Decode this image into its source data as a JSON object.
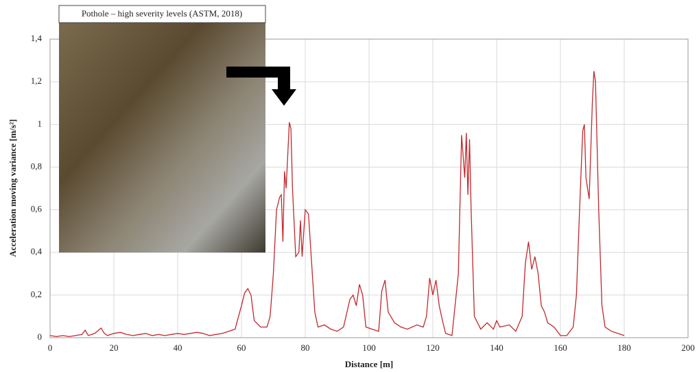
{
  "chart_data": {
    "type": "line",
    "annotation": "Pothole – high severity levels (ASTM, 2018)",
    "xlabel": "Distance [m]",
    "ylabel": "Acceleration moving variance [m/s²]",
    "x": [
      0,
      2,
      4,
      6,
      8,
      10,
      11,
      12,
      14,
      16,
      17,
      18,
      20,
      22,
      24,
      26,
      28,
      30,
      32,
      34,
      36,
      38,
      40,
      42,
      44,
      46,
      48,
      50,
      52,
      54,
      56,
      58,
      60,
      61,
      62,
      63,
      64,
      66,
      68,
      69,
      70,
      71,
      72,
      72.5,
      73,
      73.5,
      74,
      75,
      75.5,
      76,
      77,
      78,
      78.5,
      79,
      80,
      81,
      82,
      83,
      84,
      86,
      88,
      90,
      92,
      94,
      95,
      96,
      97,
      98,
      99,
      101,
      103,
      104,
      105,
      106,
      108,
      110,
      112,
      115,
      117,
      118,
      119,
      120,
      121,
      122,
      123,
      124,
      126,
      128,
      129,
      130,
      130.5,
      131,
      131.5,
      132,
      133,
      135,
      137,
      139,
      140,
      141,
      144,
      146,
      148,
      149,
      150,
      151,
      152,
      153,
      154,
      155,
      156,
      158,
      160,
      162,
      164,
      165,
      166,
      167,
      167.5,
      168,
      169,
      170,
      170.5,
      171,
      172,
      173,
      174,
      176,
      178,
      180
    ],
    "values": [
      0.01,
      0.005,
      0.01,
      0.005,
      0.01,
      0.015,
      0.035,
      0.01,
      0.02,
      0.045,
      0.02,
      0.01,
      0.02,
      0.025,
      0.015,
      0.01,
      0.015,
      0.02,
      0.01,
      0.015,
      0.01,
      0.015,
      0.02,
      0.015,
      0.02,
      0.025,
      0.02,
      0.01,
      0.015,
      0.02,
      0.03,
      0.04,
      0.15,
      0.21,
      0.23,
      0.2,
      0.08,
      0.05,
      0.05,
      0.1,
      0.3,
      0.6,
      0.66,
      0.67,
      0.45,
      0.78,
      0.7,
      1.01,
      0.98,
      0.7,
      0.38,
      0.4,
      0.55,
      0.38,
      0.6,
      0.58,
      0.35,
      0.12,
      0.05,
      0.06,
      0.04,
      0.03,
      0.05,
      0.18,
      0.2,
      0.15,
      0.25,
      0.2,
      0.05,
      0.04,
      0.03,
      0.22,
      0.27,
      0.12,
      0.07,
      0.05,
      0.04,
      0.06,
      0.05,
      0.1,
      0.28,
      0.2,
      0.27,
      0.15,
      0.08,
      0.02,
      0.01,
      0.3,
      0.95,
      0.75,
      0.96,
      0.67,
      0.93,
      0.6,
      0.1,
      0.04,
      0.07,
      0.04,
      0.08,
      0.05,
      0.06,
      0.03,
      0.1,
      0.35,
      0.45,
      0.32,
      0.38,
      0.3,
      0.15,
      0.12,
      0.07,
      0.05,
      0.01,
      0.01,
      0.05,
      0.2,
      0.6,
      0.97,
      1.0,
      0.75,
      0.65,
      1.1,
      1.25,
      1.2,
      0.6,
      0.15,
      0.05,
      0.03,
      0.02,
      0.01
    ],
    "color": "#c0282d",
    "xlim": [
      0,
      200
    ],
    "xticks": [
      0,
      20,
      40,
      60,
      80,
      100,
      120,
      140,
      160,
      180,
      200
    ],
    "ylim": [
      0,
      1.4
    ],
    "yticks": [
      0,
      {
        "value": 0.2,
        "label": "0,2"
      },
      {
        "value": 0.4,
        "label": "0,4"
      },
      {
        "value": 0.6,
        "label": "0,6"
      },
      {
        "value": 0.8,
        "label": "0,8"
      },
      1,
      {
        "value": 1.2,
        "label": "1,2"
      },
      {
        "value": 1.4,
        "label": "1,4"
      }
    ],
    "grid": true
  }
}
